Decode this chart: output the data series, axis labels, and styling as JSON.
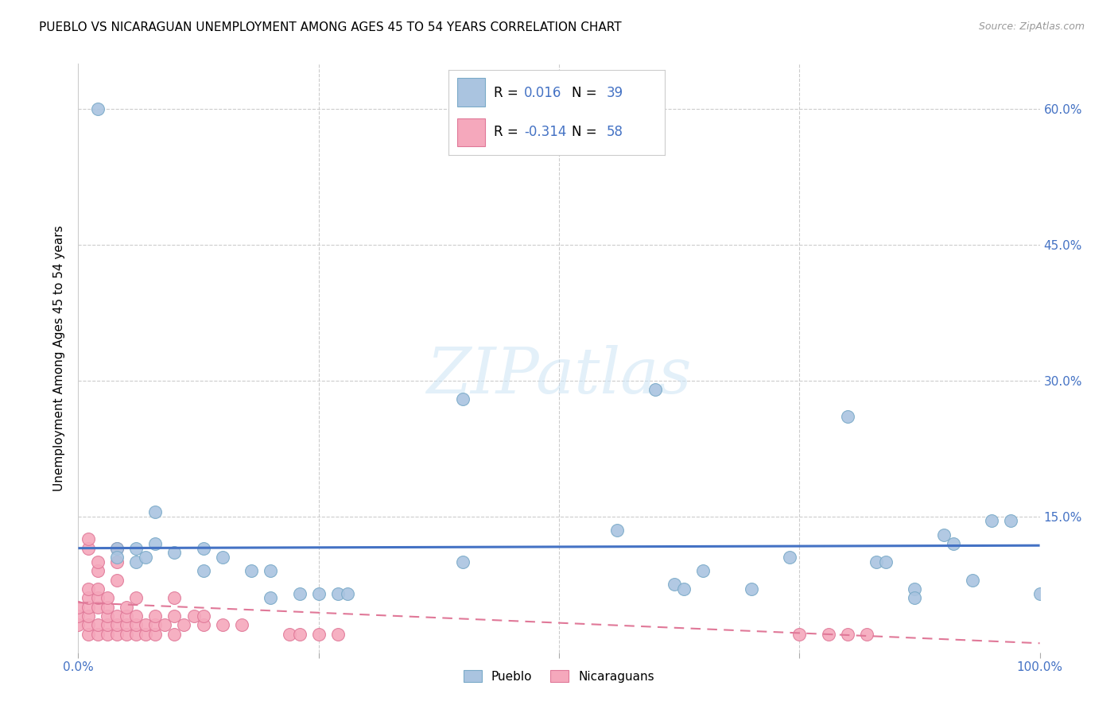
{
  "title": "PUEBLO VS NICARAGUAN UNEMPLOYMENT AMONG AGES 45 TO 54 YEARS CORRELATION CHART",
  "source": "Source: ZipAtlas.com",
  "ylabel": "Unemployment Among Ages 45 to 54 years",
  "xlim": [
    0.0,
    1.0
  ],
  "ylim": [
    0.0,
    0.65
  ],
  "xticks": [
    0.0,
    0.25,
    0.5,
    0.75,
    1.0
  ],
  "xtick_labels": [
    "0.0%",
    "",
    "",
    "",
    "100.0%"
  ],
  "ytick_labels": [
    "",
    "15.0%",
    "30.0%",
    "45.0%",
    "60.0%"
  ],
  "yticks": [
    0.0,
    0.15,
    0.3,
    0.45,
    0.6
  ],
  "pueblo_color": "#aac4e0",
  "pueblo_edge_color": "#7aaac8",
  "nicaraguan_color": "#f5a8bc",
  "nicaraguan_edge_color": "#e07898",
  "blue_line_color": "#4472c4",
  "pink_line_color": "#e07898",
  "watermark_text": "ZIPatlas",
  "pueblo_points": [
    [
      0.02,
      0.6
    ],
    [
      0.08,
      0.155
    ],
    [
      0.04,
      0.115
    ],
    [
      0.06,
      0.115
    ],
    [
      0.06,
      0.1
    ],
    [
      0.07,
      0.105
    ],
    [
      0.08,
      0.12
    ],
    [
      0.1,
      0.11
    ],
    [
      0.13,
      0.115
    ],
    [
      0.13,
      0.09
    ],
    [
      0.15,
      0.105
    ],
    [
      0.18,
      0.09
    ],
    [
      0.2,
      0.09
    ],
    [
      0.2,
      0.06
    ],
    [
      0.23,
      0.065
    ],
    [
      0.25,
      0.065
    ],
    [
      0.27,
      0.065
    ],
    [
      0.28,
      0.065
    ],
    [
      0.4,
      0.28
    ],
    [
      0.4,
      0.1
    ],
    [
      0.56,
      0.135
    ],
    [
      0.6,
      0.29
    ],
    [
      0.62,
      0.075
    ],
    [
      0.63,
      0.07
    ],
    [
      0.65,
      0.09
    ],
    [
      0.7,
      0.07
    ],
    [
      0.74,
      0.105
    ],
    [
      0.8,
      0.26
    ],
    [
      0.83,
      0.1
    ],
    [
      0.84,
      0.1
    ],
    [
      0.87,
      0.07
    ],
    [
      0.87,
      0.06
    ],
    [
      0.9,
      0.13
    ],
    [
      0.91,
      0.12
    ],
    [
      0.93,
      0.08
    ],
    [
      0.95,
      0.145
    ],
    [
      0.97,
      0.145
    ],
    [
      1.0,
      0.065
    ],
    [
      0.04,
      0.105
    ]
  ],
  "nicaraguan_points": [
    [
      0.0,
      0.03
    ],
    [
      0.0,
      0.04
    ],
    [
      0.0,
      0.05
    ],
    [
      0.01,
      0.02
    ],
    [
      0.01,
      0.03
    ],
    [
      0.01,
      0.04
    ],
    [
      0.01,
      0.05
    ],
    [
      0.01,
      0.06
    ],
    [
      0.01,
      0.07
    ],
    [
      0.01,
      0.115
    ],
    [
      0.01,
      0.125
    ],
    [
      0.02,
      0.02
    ],
    [
      0.02,
      0.03
    ],
    [
      0.02,
      0.05
    ],
    [
      0.02,
      0.06
    ],
    [
      0.02,
      0.07
    ],
    [
      0.02,
      0.09
    ],
    [
      0.02,
      0.1
    ],
    [
      0.03,
      0.02
    ],
    [
      0.03,
      0.03
    ],
    [
      0.03,
      0.04
    ],
    [
      0.03,
      0.05
    ],
    [
      0.03,
      0.06
    ],
    [
      0.04,
      0.02
    ],
    [
      0.04,
      0.03
    ],
    [
      0.04,
      0.04
    ],
    [
      0.04,
      0.08
    ],
    [
      0.04,
      0.1
    ],
    [
      0.04,
      0.115
    ],
    [
      0.05,
      0.02
    ],
    [
      0.05,
      0.03
    ],
    [
      0.05,
      0.04
    ],
    [
      0.05,
      0.05
    ],
    [
      0.06,
      0.02
    ],
    [
      0.06,
      0.03
    ],
    [
      0.06,
      0.04
    ],
    [
      0.06,
      0.06
    ],
    [
      0.07,
      0.02
    ],
    [
      0.07,
      0.03
    ],
    [
      0.08,
      0.02
    ],
    [
      0.08,
      0.03
    ],
    [
      0.08,
      0.04
    ],
    [
      0.09,
      0.03
    ],
    [
      0.1,
      0.02
    ],
    [
      0.1,
      0.04
    ],
    [
      0.1,
      0.06
    ],
    [
      0.11,
      0.03
    ],
    [
      0.12,
      0.04
    ],
    [
      0.13,
      0.03
    ],
    [
      0.13,
      0.04
    ],
    [
      0.15,
      0.03
    ],
    [
      0.17,
      0.03
    ],
    [
      0.22,
      0.02
    ],
    [
      0.23,
      0.02
    ],
    [
      0.25,
      0.02
    ],
    [
      0.27,
      0.02
    ],
    [
      0.75,
      0.02
    ],
    [
      0.78,
      0.02
    ],
    [
      0.8,
      0.02
    ],
    [
      0.82,
      0.02
    ]
  ],
  "pueblo_line": [
    0.0,
    1.0
  ],
  "pueblo_line_y": [
    0.115,
    0.118
  ],
  "nicaraguan_line": [
    0.0,
    1.0
  ],
  "nicaraguan_line_y": [
    0.055,
    0.01
  ]
}
